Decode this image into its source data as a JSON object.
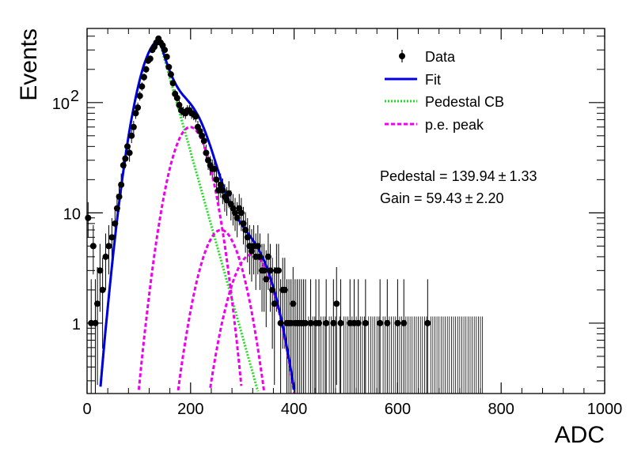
{
  "chart_data": {
    "type": "scatter",
    "xlabel": "ADC",
    "ylabel": "Events",
    "xlim": [
      0,
      1000
    ],
    "ylim": [
      0.23,
      470
    ],
    "yscale": "log",
    "grid": false,
    "legend_position": "top-right",
    "x_ticks": [
      {
        "value": 0,
        "label": "0"
      },
      {
        "value": 200,
        "label": "200"
      },
      {
        "value": 400,
        "label": "400"
      },
      {
        "value": 600,
        "label": "600"
      },
      {
        "value": 800,
        "label": "800"
      },
      {
        "value": 1000,
        "label": "1000"
      }
    ],
    "y_ticks": [
      {
        "value": 1,
        "label": "1"
      },
      {
        "value": 10,
        "label": "10"
      },
      {
        "value": 100,
        "label": "10",
        "exponent": "2"
      }
    ],
    "legend": [
      {
        "label": "Data",
        "style": "marker",
        "color": "#000000"
      },
      {
        "label": "Fit",
        "style": "solid",
        "color": "#0000dd"
      },
      {
        "label": "Pedestal CB",
        "style": "dotted",
        "color": "#22dd22"
      },
      {
        "label": "p.e. peak",
        "style": "dashed",
        "color": "#ee00ee"
      }
    ],
    "annotations": [
      {
        "text": "Pedestal = 139.94",
        "pm": "±",
        "err": "1.33"
      },
      {
        "text": "Gain = 59.43",
        "pm": "±",
        "err": "2.20"
      }
    ],
    "fit_parameters": {
      "pedestal": 139.94,
      "pedestal_err": 1.33,
      "gain": 59.43,
      "gain_err": 2.2
    },
    "data_points": [
      {
        "x": 2,
        "y": 9.0
      },
      {
        "x": 8,
        "y": 1.0
      },
      {
        "x": 12,
        "y": 5.0
      },
      {
        "x": 16,
        "y": 1.0
      },
      {
        "x": 20,
        "y": 1.5
      },
      {
        "x": 25,
        "y": 3.0
      },
      {
        "x": 30,
        "y": 2.0
      },
      {
        "x": 36,
        "y": 4.0
      },
      {
        "x": 42,
        "y": 5.0
      },
      {
        "x": 48,
        "y": 6.0
      },
      {
        "x": 54,
        "y": 8.0
      },
      {
        "x": 58,
        "y": 11.0
      },
      {
        "x": 62,
        "y": 14.0
      },
      {
        "x": 66,
        "y": 18.0
      },
      {
        "x": 70,
        "y": 27.0
      },
      {
        "x": 74,
        "y": 31.0
      },
      {
        "x": 78,
        "y": 40.0
      },
      {
        "x": 82,
        "y": 35.0
      },
      {
        "x": 86,
        "y": 50.0
      },
      {
        "x": 90,
        "y": 60.0
      },
      {
        "x": 94,
        "y": 80.0
      },
      {
        "x": 98,
        "y": 90.0
      },
      {
        "x": 102,
        "y": 115.0
      },
      {
        "x": 106,
        "y": 140.0
      },
      {
        "x": 110,
        "y": 170.0
      },
      {
        "x": 114,
        "y": 200.0
      },
      {
        "x": 118,
        "y": 240.0
      },
      {
        "x": 122,
        "y": 250.0
      },
      {
        "x": 126,
        "y": 300.0
      },
      {
        "x": 130,
        "y": 320.0
      },
      {
        "x": 134,
        "y": 350.0
      },
      {
        "x": 138,
        "y": 380.0
      },
      {
        "x": 142,
        "y": 350.0
      },
      {
        "x": 146,
        "y": 330.0
      },
      {
        "x": 150,
        "y": 300.0
      },
      {
        "x": 154,
        "y": 260.0
      },
      {
        "x": 158,
        "y": 210.0
      },
      {
        "x": 162,
        "y": 180.0
      },
      {
        "x": 166,
        "y": 150.0
      },
      {
        "x": 170,
        "y": 120.0
      },
      {
        "x": 174,
        "y": 110.0
      },
      {
        "x": 178,
        "y": 95.0
      },
      {
        "x": 182,
        "y": 85.0
      },
      {
        "x": 186,
        "y": 82.0
      },
      {
        "x": 190,
        "y": 80.0
      },
      {
        "x": 194,
        "y": 85.0
      },
      {
        "x": 198,
        "y": 85.0
      },
      {
        "x": 202,
        "y": 80.0
      },
      {
        "x": 206,
        "y": 78.0
      },
      {
        "x": 210,
        "y": 75.0
      },
      {
        "x": 214,
        "y": 60.0
      },
      {
        "x": 218,
        "y": 55.0
      },
      {
        "x": 222,
        "y": 50.0
      },
      {
        "x": 226,
        "y": 45.0
      },
      {
        "x": 230,
        "y": 35.0
      },
      {
        "x": 234,
        "y": 30.0
      },
      {
        "x": 238,
        "y": 27.0
      },
      {
        "x": 242,
        "y": 25.0
      },
      {
        "x": 246,
        "y": 25.0
      },
      {
        "x": 250,
        "y": 20.0
      },
      {
        "x": 254,
        "y": 16.0
      },
      {
        "x": 258,
        "y": 18.0
      },
      {
        "x": 262,
        "y": 16.0
      },
      {
        "x": 266,
        "y": 14.0
      },
      {
        "x": 270,
        "y": 13.0
      },
      {
        "x": 274,
        "y": 15.0
      },
      {
        "x": 278,
        "y": 12.0
      },
      {
        "x": 282,
        "y": 11.0
      },
      {
        "x": 286,
        "y": 10.0
      },
      {
        "x": 290,
        "y": 9.0
      },
      {
        "x": 294,
        "y": 11.0
      },
      {
        "x": 298,
        "y": 10.0
      },
      {
        "x": 302,
        "y": 8.0
      },
      {
        "x": 306,
        "y": 7.0
      },
      {
        "x": 310,
        "y": 6.0
      },
      {
        "x": 314,
        "y": 5.0
      },
      {
        "x": 318,
        "y": 4.5
      },
      {
        "x": 322,
        "y": 5.0
      },
      {
        "x": 326,
        "y": 4.0
      },
      {
        "x": 330,
        "y": 5.0
      },
      {
        "x": 334,
        "y": 4.0
      },
      {
        "x": 338,
        "y": 3.0
      },
      {
        "x": 342,
        "y": 3.0
      },
      {
        "x": 346,
        "y": 2.5
      },
      {
        "x": 350,
        "y": 4.0
      },
      {
        "x": 354,
        "y": 3.0
      },
      {
        "x": 358,
        "y": 2.0
      },
      {
        "x": 362,
        "y": 1.5
      },
      {
        "x": 366,
        "y": 3.0
      },
      {
        "x": 370,
        "y": 3.0
      },
      {
        "x": 374,
        "y": 1.0
      },
      {
        "x": 378,
        "y": 2.0
      },
      {
        "x": 382,
        "y": 2.0
      },
      {
        "x": 386,
        "y": 1.0
      },
      {
        "x": 390,
        "y": 1.0
      },
      {
        "x": 394,
        "y": 1.0
      },
      {
        "x": 398,
        "y": 1.5
      },
      {
        "x": 402,
        "y": 1.0
      },
      {
        "x": 406,
        "y": 1.0
      },
      {
        "x": 410,
        "y": 1.0
      },
      {
        "x": 414,
        "y": 1.0
      },
      {
        "x": 418,
        "y": 1.0
      },
      {
        "x": 422,
        "y": 1.0
      },
      {
        "x": 432,
        "y": 1.0
      },
      {
        "x": 442,
        "y": 1.0
      },
      {
        "x": 448,
        "y": 1.0
      },
      {
        "x": 462,
        "y": 1.0
      },
      {
        "x": 476,
        "y": 1.0
      },
      {
        "x": 482,
        "y": 1.5
      },
      {
        "x": 490,
        "y": 1.0
      },
      {
        "x": 508,
        "y": 1.0
      },
      {
        "x": 516,
        "y": 1.0
      },
      {
        "x": 524,
        "y": 1.0
      },
      {
        "x": 538,
        "y": 1.0
      },
      {
        "x": 566,
        "y": 1.0
      },
      {
        "x": 580,
        "y": 1.0
      },
      {
        "x": 600,
        "y": 1.0
      },
      {
        "x": 612,
        "y": 1.0
      },
      {
        "x": 658,
        "y": 1.0
      }
    ]
  }
}
